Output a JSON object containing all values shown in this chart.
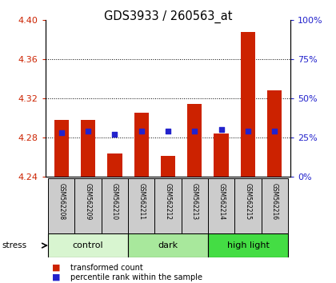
{
  "title": "GDS3933 / 260563_at",
  "samples": [
    "GSM562208",
    "GSM562209",
    "GSM562210",
    "GSM562211",
    "GSM562212",
    "GSM562213",
    "GSM562214",
    "GSM562215",
    "GSM562216"
  ],
  "transformed_count": [
    4.298,
    4.298,
    4.264,
    4.305,
    4.261,
    4.314,
    4.284,
    4.388,
    4.328
  ],
  "percentile_rank": [
    28,
    29,
    27,
    29,
    29,
    29,
    30,
    29,
    29
  ],
  "bar_bottom": 4.24,
  "ylim_left": [
    4.24,
    4.4
  ],
  "ylim_right": [
    0,
    100
  ],
  "yticks_left": [
    4.24,
    4.28,
    4.32,
    4.36,
    4.4
  ],
  "yticks_right": [
    0,
    25,
    50,
    75,
    100
  ],
  "groups": [
    {
      "label": "control",
      "start": 0,
      "end": 3,
      "color": "#d8f5d0"
    },
    {
      "label": "dark",
      "start": 3,
      "end": 6,
      "color": "#a8e89c"
    },
    {
      "label": "high light",
      "start": 6,
      "end": 9,
      "color": "#44dd44"
    }
  ],
  "stress_label": "stress",
  "bar_color": "#cc2200",
  "dot_color": "#2222cc",
  "background_color": "#ffffff",
  "tick_color_left": "#cc2200",
  "tick_color_right": "#2222cc",
  "bar_width": 0.55,
  "sample_area_color": "#cccccc",
  "sample_area_edge": "#000000",
  "legend_square_red": "#cc2200",
  "legend_square_blue": "#2222cc"
}
